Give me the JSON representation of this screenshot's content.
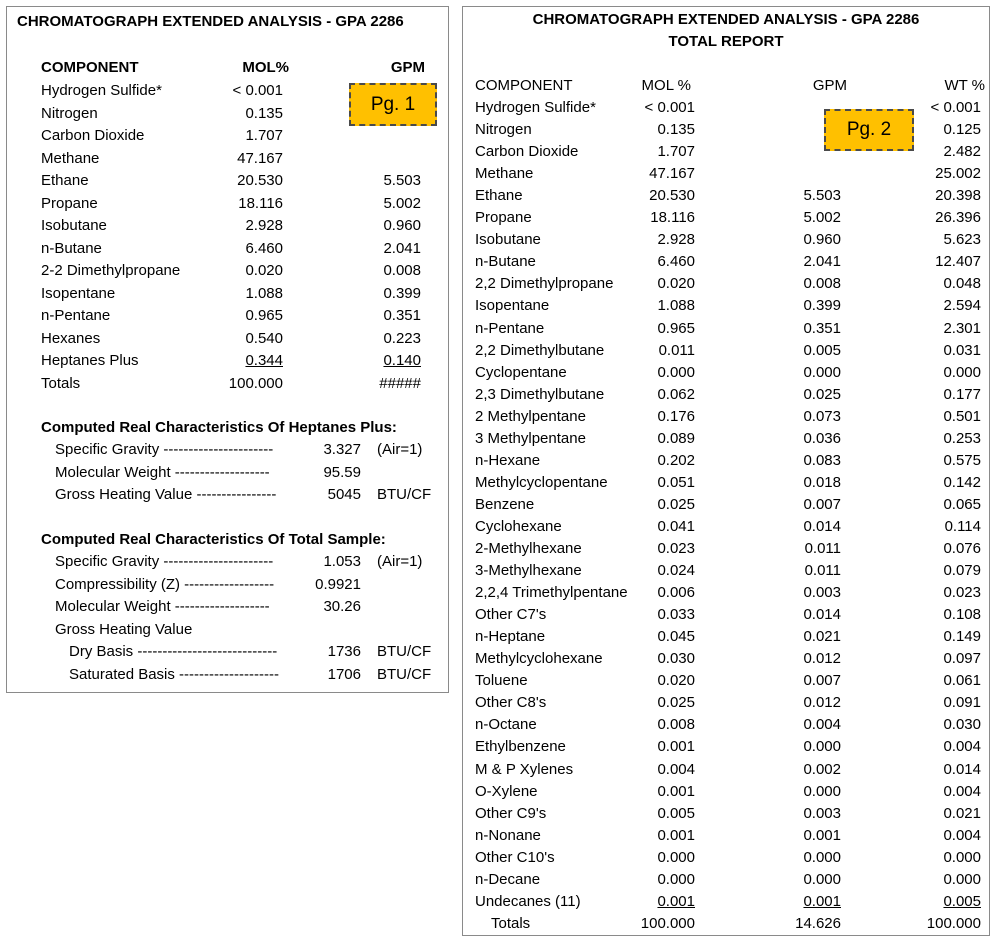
{
  "page1": {
    "title": "CHROMATOGRAPH EXTENDED ANALYSIS - GPA 2286",
    "badge": "Pg. 1",
    "headers": {
      "component": "COMPONENT",
      "mol": "MOL%",
      "gpm": "GPM"
    },
    "rows": [
      {
        "name": "Hydrogen Sulfide*",
        "mol": "< 0.001",
        "gpm": ""
      },
      {
        "name": "Nitrogen",
        "mol": "0.135",
        "gpm": ""
      },
      {
        "name": "Carbon Dioxide",
        "mol": "1.707",
        "gpm": ""
      },
      {
        "name": "Methane",
        "mol": "47.167",
        "gpm": ""
      },
      {
        "name": "Ethane",
        "mol": "20.530",
        "gpm": "5.503"
      },
      {
        "name": "Propane",
        "mol": "18.116",
        "gpm": "5.002"
      },
      {
        "name": "Isobutane",
        "mol": "2.928",
        "gpm": "0.960"
      },
      {
        "name": "n-Butane",
        "mol": "6.460",
        "gpm": "2.041"
      },
      {
        "name": "2-2 Dimethylpropane",
        "mol": "0.020",
        "gpm": "0.008"
      },
      {
        "name": "Isopentane",
        "mol": "1.088",
        "gpm": "0.399"
      },
      {
        "name": "n-Pentane",
        "mol": "0.965",
        "gpm": "0.351"
      },
      {
        "name": "Hexanes",
        "mol": "0.540",
        "gpm": "0.223"
      },
      {
        "name": "Heptanes Plus",
        "mol": "0.344",
        "gpm": "0.140"
      },
      {
        "name": "Totals",
        "mol": "100.000",
        "gpm": "#####"
      }
    ],
    "heptanes": {
      "heading": "Computed Real Characteristics Of Heptanes Plus:",
      "rows": [
        {
          "label": "Specific Gravity ----------------------",
          "value": "3.327",
          "unit": "(Air=1)"
        },
        {
          "label": "Molecular Weight -------------------",
          "value": "95.59",
          "unit": ""
        },
        {
          "label": "Gross Heating Value ----------------",
          "value": "5045",
          "unit": "BTU/CF"
        }
      ]
    },
    "total_sample": {
      "heading": "Computed Real Characteristics Of Total Sample:",
      "rows": [
        {
          "label": "Specific Gravity ----------------------",
          "value": "1.053",
          "unit": "(Air=1)"
        },
        {
          "label": "Compressibility (Z) ------------------",
          "value": "0.9921",
          "unit": ""
        },
        {
          "label": "Molecular Weight -------------------",
          "value": "30.26",
          "unit": ""
        },
        {
          "label": "Gross Heating Value",
          "value": "",
          "unit": ""
        },
        {
          "label": "Dry Basis ----------------------------",
          "value": "1736",
          "unit": "BTU/CF"
        },
        {
          "label": "Saturated Basis --------------------",
          "value": "1706",
          "unit": "BTU/CF"
        }
      ]
    }
  },
  "page2": {
    "title": "CHROMATOGRAPH EXTENDED ANALYSIS - GPA 2286",
    "subtitle": "TOTAL REPORT",
    "badge": "Pg. 2",
    "headers": {
      "component": "COMPONENT",
      "mol": "MOL %",
      "gpm": "GPM",
      "wt": "WT %"
    },
    "rows": [
      {
        "name": "Hydrogen Sulfide*",
        "mol": "< 0.001",
        "gpm": "",
        "wt": "< 0.001"
      },
      {
        "name": "Nitrogen",
        "mol": "0.135",
        "gpm": "",
        "wt": "0.125"
      },
      {
        "name": "Carbon Dioxide",
        "mol": "1.707",
        "gpm": "",
        "wt": "2.482"
      },
      {
        "name": "Methane",
        "mol": "47.167",
        "gpm": "",
        "wt": "25.002"
      },
      {
        "name": "Ethane",
        "mol": "20.530",
        "gpm": "5.503",
        "wt": "20.398"
      },
      {
        "name": "Propane",
        "mol": "18.116",
        "gpm": "5.002",
        "wt": "26.396"
      },
      {
        "name": "Isobutane",
        "mol": "2.928",
        "gpm": "0.960",
        "wt": "5.623"
      },
      {
        "name": "n-Butane",
        "mol": "6.460",
        "gpm": "2.041",
        "wt": "12.407"
      },
      {
        "name": "2,2 Dimethylpropane",
        "mol": "0.020",
        "gpm": "0.008",
        "wt": "0.048"
      },
      {
        "name": "Isopentane",
        "mol": "1.088",
        "gpm": "0.399",
        "wt": "2.594"
      },
      {
        "name": "n-Pentane",
        "mol": "0.965",
        "gpm": "0.351",
        "wt": "2.301"
      },
      {
        "name": "2,2 Dimethylbutane",
        "mol": "0.011",
        "gpm": "0.005",
        "wt": "0.031"
      },
      {
        "name": "Cyclopentane",
        "mol": "0.000",
        "gpm": "0.000",
        "wt": "0.000"
      },
      {
        "name": "2,3 Dimethylbutane",
        "mol": "0.062",
        "gpm": "0.025",
        "wt": "0.177"
      },
      {
        "name": "2 Methylpentane",
        "mol": "0.176",
        "gpm": "0.073",
        "wt": "0.501"
      },
      {
        "name": "3 Methylpentane",
        "mol": "0.089",
        "gpm": "0.036",
        "wt": "0.253"
      },
      {
        "name": "n-Hexane",
        "mol": "0.202",
        "gpm": "0.083",
        "wt": "0.575"
      },
      {
        "name": "Methylcyclopentane",
        "mol": "0.051",
        "gpm": "0.018",
        "wt": "0.142"
      },
      {
        "name": "Benzene",
        "mol": "0.025",
        "gpm": "0.007",
        "wt": "0.065"
      },
      {
        "name": "Cyclohexane",
        "mol": "0.041",
        "gpm": "0.014",
        "wt": "0.114"
      },
      {
        "name": "2-Methylhexane",
        "mol": "0.023",
        "gpm": "0.011",
        "wt": "0.076"
      },
      {
        "name": "3-Methylhexane",
        "mol": "0.024",
        "gpm": "0.011",
        "wt": "0.079"
      },
      {
        "name": "2,2,4 Trimethylpentane",
        "mol": "0.006",
        "gpm": "0.003",
        "wt": "0.023"
      },
      {
        "name": "Other C7's",
        "mol": "0.033",
        "gpm": "0.014",
        "wt": "0.108"
      },
      {
        "name": "n-Heptane",
        "mol": "0.045",
        "gpm": "0.021",
        "wt": "0.149"
      },
      {
        "name": "Methylcyclohexane",
        "mol": "0.030",
        "gpm": "0.012",
        "wt": "0.097"
      },
      {
        "name": "Toluene",
        "mol": "0.020",
        "gpm": "0.007",
        "wt": "0.061"
      },
      {
        "name": "Other C8's",
        "mol": "0.025",
        "gpm": "0.012",
        "wt": "0.091"
      },
      {
        "name": "n-Octane",
        "mol": "0.008",
        "gpm": "0.004",
        "wt": "0.030"
      },
      {
        "name": "Ethylbenzene",
        "mol": "0.001",
        "gpm": "0.000",
        "wt": "0.004"
      },
      {
        "name": "M & P Xylenes",
        "mol": "0.004",
        "gpm": "0.002",
        "wt": "0.014"
      },
      {
        "name": "O-Xylene",
        "mol": "0.001",
        "gpm": "0.000",
        "wt": "0.004"
      },
      {
        "name": "Other C9's",
        "mol": "0.005",
        "gpm": "0.003",
        "wt": "0.021"
      },
      {
        "name": "n-Nonane",
        "mol": "0.001",
        "gpm": "0.001",
        "wt": "0.004"
      },
      {
        "name": "Other C10's",
        "mol": "0.000",
        "gpm": "0.000",
        "wt": "0.000"
      },
      {
        "name": "n-Decane",
        "mol": "0.000",
        "gpm": "0.000",
        "wt": "0.000"
      },
      {
        "name": "Undecanes (11)",
        "mol": "0.001",
        "gpm": "0.001",
        "wt": "0.005"
      },
      {
        "name": "Totals",
        "mol": "100.000",
        "gpm": "14.626",
        "wt": "100.000"
      }
    ]
  }
}
